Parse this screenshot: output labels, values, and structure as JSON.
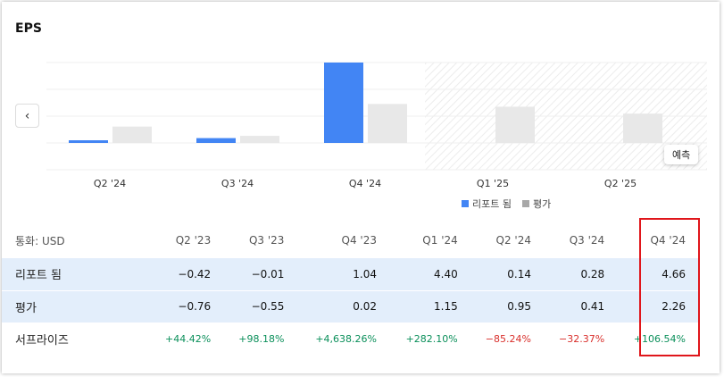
{
  "title": "EPS",
  "nav": {
    "prev_icon": "‹"
  },
  "forecast_label": "예측",
  "legend": [
    {
      "label": "리포트 됨",
      "color": "#4285f4"
    },
    {
      "label": "평가",
      "color": "#a8a8a8"
    }
  ],
  "chart_data": {
    "type": "bar",
    "categories": [
      "Q2 '24",
      "Q3 '24",
      "Q4 '24",
      "Q1 '25",
      "Q2 '25"
    ],
    "series": [
      {
        "name": "리포트 됨",
        "values": [
          0.14,
          0.28,
          4.66,
          null,
          null
        ],
        "color": "#4285f4"
      },
      {
        "name": "평가",
        "values": [
          0.95,
          0.41,
          2.26,
          2.1,
          1.7
        ],
        "color": "#e8e8e8"
      }
    ],
    "ylim": [
      0,
      5
    ],
    "grid": true,
    "forecast_from_index": 3
  },
  "table": {
    "header_label": "통화: USD",
    "columns": [
      "Q2 '23",
      "Q3 '23",
      "Q4 '23",
      "Q1 '24",
      "Q2 '24",
      "Q3 '24",
      "Q4 '24"
    ],
    "rows": [
      {
        "label": "리포트 됨",
        "values": [
          "−0.42",
          "−0.01",
          "1.04",
          "4.40",
          "0.14",
          "0.28",
          "4.66"
        ]
      },
      {
        "label": "평가",
        "values": [
          "−0.76",
          "−0.55",
          "0.02",
          "1.15",
          "0.95",
          "0.41",
          "2.26"
        ]
      }
    ],
    "surprise": {
      "label": "서프라이즈",
      "values": [
        "+44.42%",
        "+98.18%",
        "+4,638.26%",
        "+282.10%",
        "−85.24%",
        "−32.37%",
        "+106.54%"
      ],
      "signs": [
        "pos",
        "pos",
        "pos",
        "pos",
        "neg",
        "neg",
        "pos"
      ]
    }
  }
}
